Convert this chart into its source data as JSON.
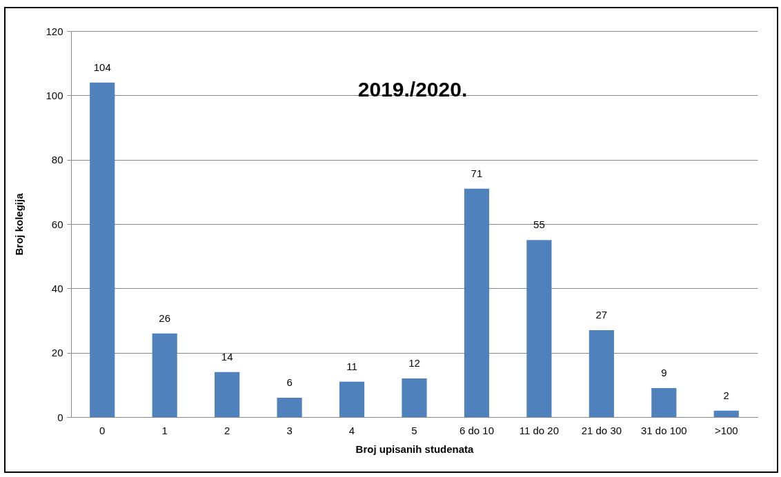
{
  "chart_data": {
    "type": "bar",
    "title": "2019./2020.",
    "xlabel": "Broj upisanih studenata",
    "ylabel": "Broj kolegija",
    "categories": [
      "0",
      "1",
      "2",
      "3",
      "4",
      "5",
      "6 do 10",
      "11 do 20",
      "21 do 30",
      "31 do 100",
      ">100"
    ],
    "values": [
      104,
      26,
      14,
      6,
      11,
      12,
      71,
      55,
      27,
      9,
      2
    ],
    "color": "#4f81bd",
    "ylim": [
      0,
      120
    ],
    "yticks": [
      0,
      20,
      40,
      60,
      80,
      100,
      120
    ],
    "grid": "y",
    "data_labels": true
  }
}
